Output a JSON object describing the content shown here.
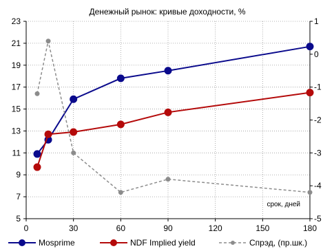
{
  "chart_data": {
    "type": "line",
    "title": "Денежный рынок: кривые доходности, %",
    "annotation": "срок, дней",
    "x_ticks": [
      0,
      30,
      60,
      90,
      120,
      150,
      180
    ],
    "x_tick_labels": [
      "0",
      "30",
      "60",
      "90",
      "120",
      "150",
      "180"
    ],
    "xlim": [
      0,
      180
    ],
    "y_left": {
      "ylim": [
        5,
        23
      ],
      "ticks": [
        5,
        7,
        9,
        11,
        13,
        15,
        17,
        19,
        21,
        23
      ],
      "tick_labels": [
        "5",
        "7",
        "9",
        "11",
        "13",
        "15",
        "17",
        "19",
        "21",
        "23"
      ]
    },
    "y_right": {
      "ylim": [
        -5,
        1
      ],
      "ticks": [
        -5,
        -4,
        -3,
        -2,
        -1,
        0,
        1
      ],
      "tick_labels": [
        "-5",
        "-4",
        "-3",
        "-2",
        "-1",
        "0",
        "1"
      ]
    },
    "grid": true,
    "legend_position": "bottom",
    "series": [
      {
        "name": "Mosprime",
        "axis": "left",
        "color": "#0a0a8c",
        "style": "solid",
        "x": [
          7,
          14,
          30,
          60,
          90,
          180
        ],
        "y": [
          10.9,
          12.2,
          15.9,
          17.8,
          18.5,
          20.7
        ]
      },
      {
        "name": "NDF Implied yield",
        "axis": "left",
        "color": "#b40a0a",
        "style": "solid",
        "x": [
          7,
          14,
          30,
          60,
          90,
          180
        ],
        "y": [
          9.7,
          12.7,
          12.9,
          13.6,
          14.7,
          16.5
        ]
      },
      {
        "name": "Спрэд, (пр.шк.)",
        "axis": "right",
        "color": "#8c8c8c",
        "style": "dashed",
        "x": [
          7,
          14,
          30,
          60,
          90,
          180
        ],
        "y": [
          -1.2,
          0.4,
          -3.0,
          -4.2,
          -3.8,
          -4.2
        ]
      }
    ]
  }
}
